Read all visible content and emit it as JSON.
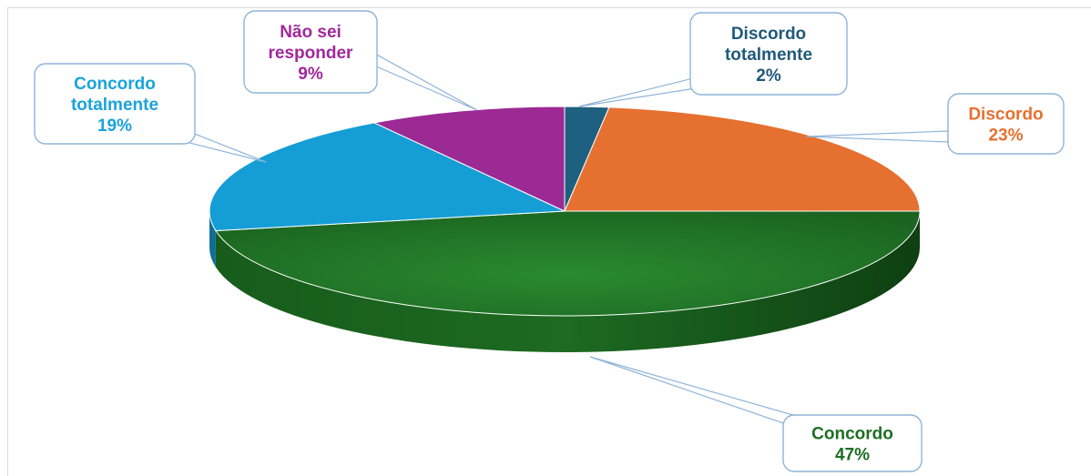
{
  "chart_data": {
    "type": "pie",
    "title": "",
    "legend": "none",
    "slices": [
      {
        "name": "Discordo totalmente",
        "label_lines": [
          "Discordo",
          "totalmente"
        ],
        "value_label": "2%",
        "value": 2,
        "color": "#1f5f80"
      },
      {
        "name": "Discordo",
        "label_lines": [
          "Discordo"
        ],
        "value_label": "23%",
        "value": 23,
        "color": "#e67030"
      },
      {
        "name": "Concordo",
        "label_lines": [
          "Concordo"
        ],
        "value_label": "47%",
        "value": 47,
        "color": "#1e6e24"
      },
      {
        "name": "Concordo totalmente",
        "label_lines": [
          "Concordo",
          "totalmente"
        ],
        "value_label": "19%",
        "value": 19,
        "color": "#159ed6"
      },
      {
        "name": "Não sei responder",
        "label_lines": [
          "Não sei",
          "responder"
        ],
        "value_label": "9%",
        "value": 9,
        "color": "#9c2a95"
      }
    ],
    "label_colors": {
      "Discordo totalmente": "#1f5a7a",
      "Discordo": "#e67030",
      "Concordo": "#1e6e24",
      "Concordo totalmente": "#1aa3dc",
      "Não sei responder": "#a1289a"
    }
  }
}
